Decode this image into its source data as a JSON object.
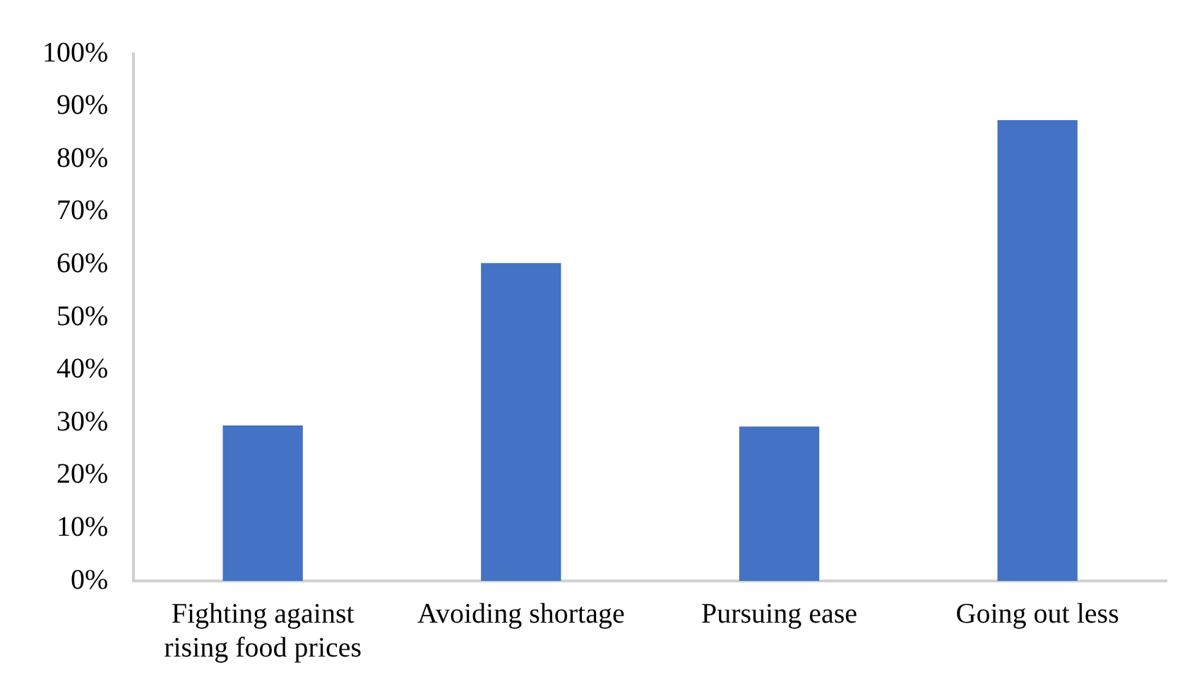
{
  "chart_data": {
    "type": "bar",
    "categories": [
      "Fighting against rising food prices",
      "Avoiding shortage",
      "Pursuing ease",
      "Going out less"
    ],
    "values": [
      29.5,
      60.3,
      29.3,
      87.4
    ],
    "color": "#4472c4",
    "ylim": [
      0,
      100
    ],
    "yticks": [
      {
        "value": 0,
        "label": "0%"
      },
      {
        "value": 10,
        "label": "10%"
      },
      {
        "value": 20,
        "label": "20%"
      },
      {
        "value": 30,
        "label": "30%"
      },
      {
        "value": 40,
        "label": "40%"
      },
      {
        "value": 50,
        "label": "50%"
      },
      {
        "value": 60,
        "label": "60%"
      },
      {
        "value": 70,
        "label": "70%"
      },
      {
        "value": 80,
        "label": "80%"
      },
      {
        "value": 90,
        "label": "90%"
      },
      {
        "value": 100,
        "label": "100%"
      }
    ],
    "grid": false,
    "legend": false
  }
}
